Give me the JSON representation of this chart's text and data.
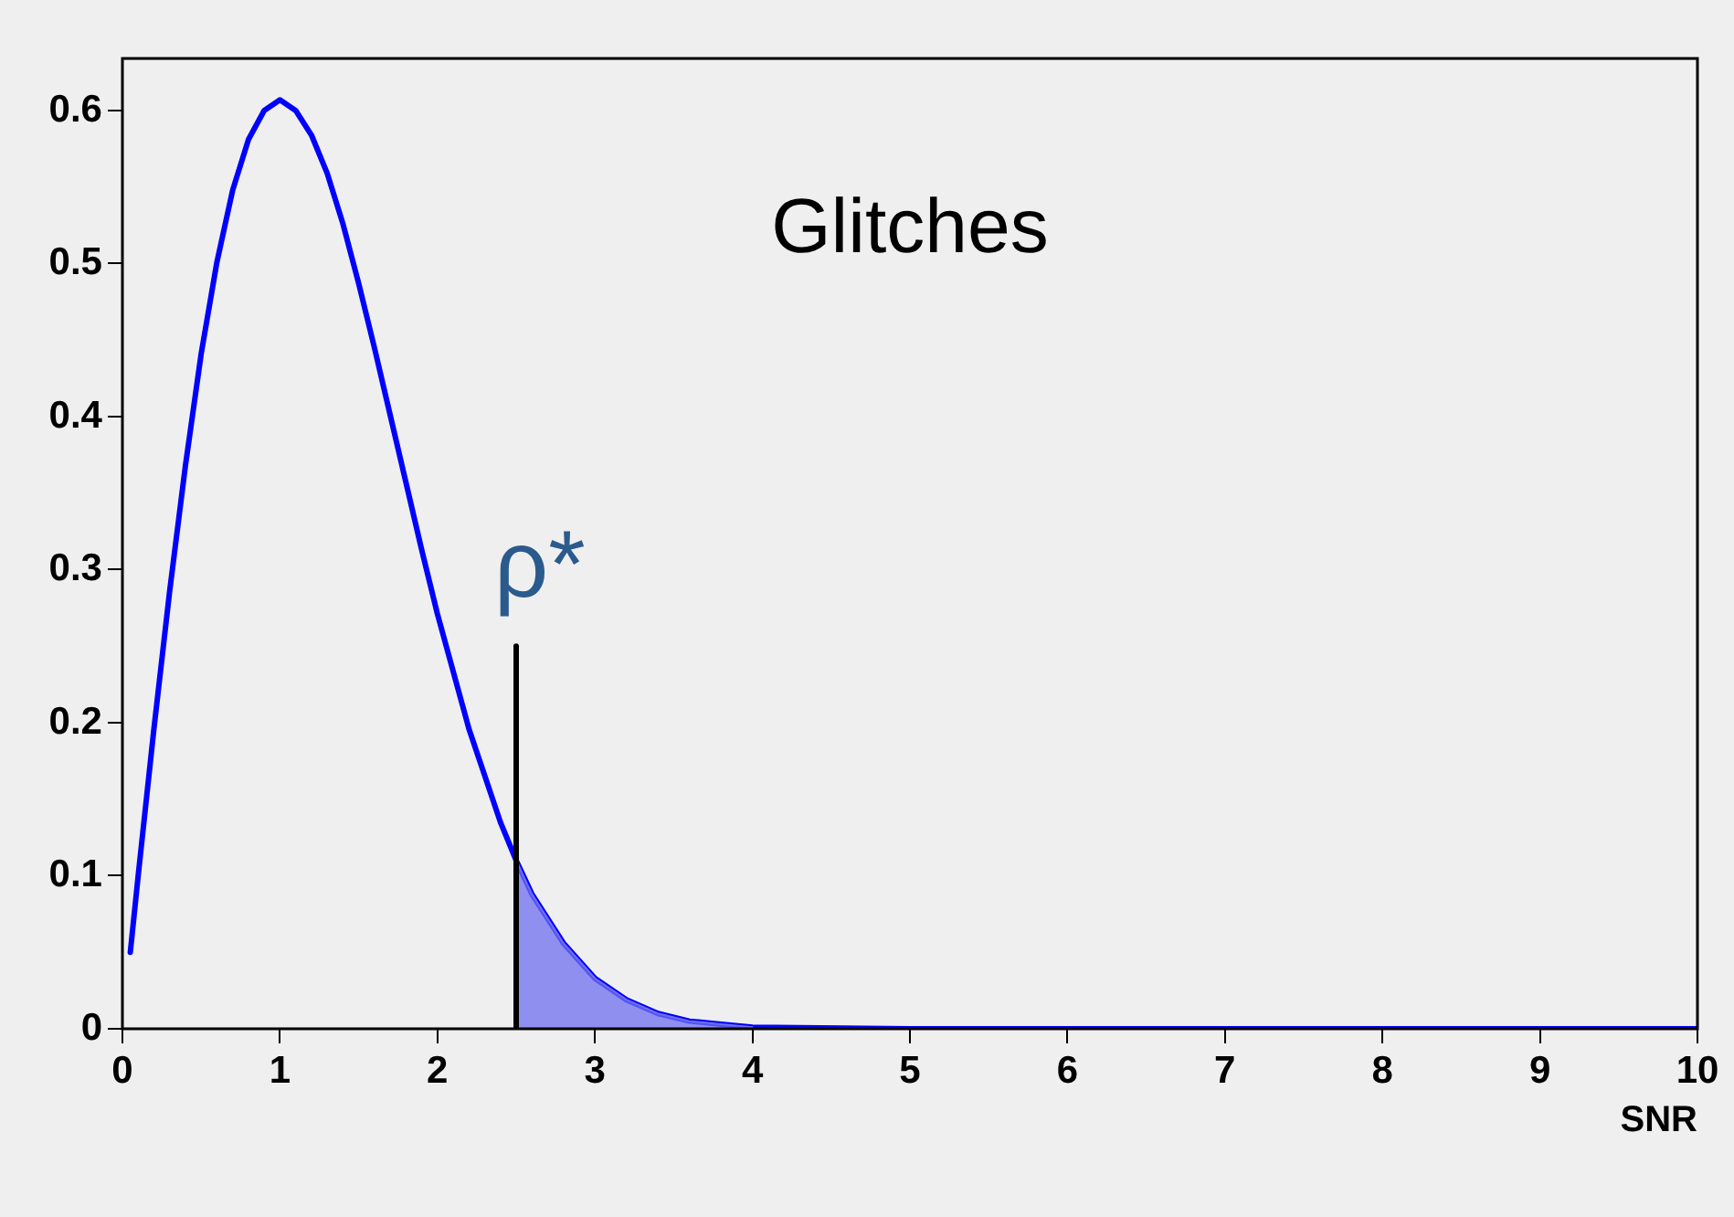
{
  "chart_data": {
    "type": "line",
    "xlabel": "SNR",
    "xlim": [
      0,
      10
    ],
    "xticks": [
      0,
      1,
      2,
      3,
      4,
      5,
      6,
      7,
      8,
      9,
      10
    ],
    "ylim": [
      0,
      0.634
    ],
    "yticks": [
      0,
      0.1,
      0.2,
      0.3,
      0.4,
      0.5,
      0.6
    ],
    "grid": false,
    "legend": false,
    "marker": "none",
    "line_style": "solid",
    "series": [
      {
        "type": "line",
        "color": "#0000ff",
        "x": [
          0.05,
          0.1,
          0.2,
          0.3,
          0.4,
          0.5,
          0.6,
          0.7,
          0.8,
          0.9,
          1.0,
          1.1,
          1.2,
          1.3,
          1.4,
          1.5,
          1.6,
          1.7,
          1.8,
          1.9,
          2.0,
          2.2,
          2.4,
          2.5,
          2.6,
          2.8,
          3.0,
          3.2,
          3.4,
          3.6,
          3.8,
          4.0,
          5,
          6,
          7,
          8,
          9,
          10
        ],
        "values": [
          0.05,
          0.1,
          0.196,
          0.286,
          0.368,
          0.441,
          0.501,
          0.548,
          0.581,
          0.6,
          0.607,
          0.6,
          0.584,
          0.559,
          0.526,
          0.487,
          0.445,
          0.401,
          0.357,
          0.313,
          0.271,
          0.196,
          0.135,
          0.11,
          0.088,
          0.056,
          0.033,
          0.019,
          0.01,
          0.005,
          0.003,
          0.001,
          0,
          0,
          0,
          0,
          0,
          0
        ]
      },
      {
        "type": "area",
        "color": "#6f6ff0",
        "x": [
          2.5,
          2.6,
          2.8,
          3.0,
          3.2,
          3.4,
          3.6,
          3.8,
          4.0
        ],
        "values": [
          0.11,
          0.088,
          0.056,
          0.033,
          0.019,
          0.01,
          0.005,
          0.003,
          0.001
        ]
      },
      {
        "type": "line",
        "color": "#000000",
        "x": [
          2.5,
          2.5
        ],
        "values": [
          0,
          0.25
        ]
      }
    ],
    "annotations": [
      "Glitches",
      "ρ*"
    ]
  }
}
